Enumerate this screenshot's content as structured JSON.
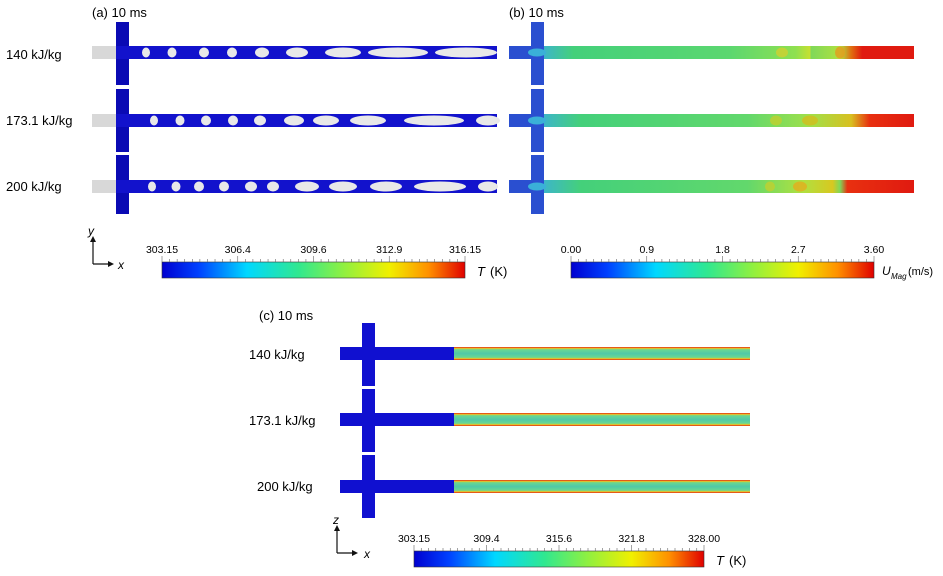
{
  "panels": {
    "a": {
      "title": "(a) 10 ms",
      "rows": [
        "140 kJ/kg",
        "173.1 kJ/kg",
        "200 kJ/kg"
      ],
      "colorbar": {
        "ticks": [
          "303.15",
          "306.4",
          "309.6",
          "312.9",
          "316.15"
        ],
        "unit_symbol": "T",
        "unit_suffix": "(K)"
      },
      "axes": {
        "vertical": "y",
        "horizontal": "x"
      }
    },
    "b": {
      "title": "(b) 10 ms",
      "colorbar": {
        "ticks": [
          "0.00",
          "0.9",
          "1.8",
          "2.7",
          "3.60"
        ],
        "unit_symbol": "U",
        "unit_sub": "Mag",
        "unit_suffix": "(m/s)"
      }
    },
    "c": {
      "title": "(c) 10 ms",
      "rows": [
        "140 kJ/kg",
        "173.1 kJ/kg",
        "200 kJ/kg"
      ],
      "colorbar": {
        "ticks": [
          "303.15",
          "309.4",
          "315.6",
          "321.8",
          "328.00"
        ],
        "unit_symbol": "T",
        "unit_suffix": "(K)"
      },
      "axes": {
        "vertical": "z",
        "horizontal": "x"
      }
    }
  },
  "colors": {
    "cold_blue": "#1010d0",
    "dark_blue": "#0a0ab4",
    "vapor_white": "#e4e4e4",
    "velocity_green": "#4fd27a",
    "velocity_red": "#e01a10",
    "wall_line": "#d11"
  },
  "colormap": "rainbow-jet"
}
